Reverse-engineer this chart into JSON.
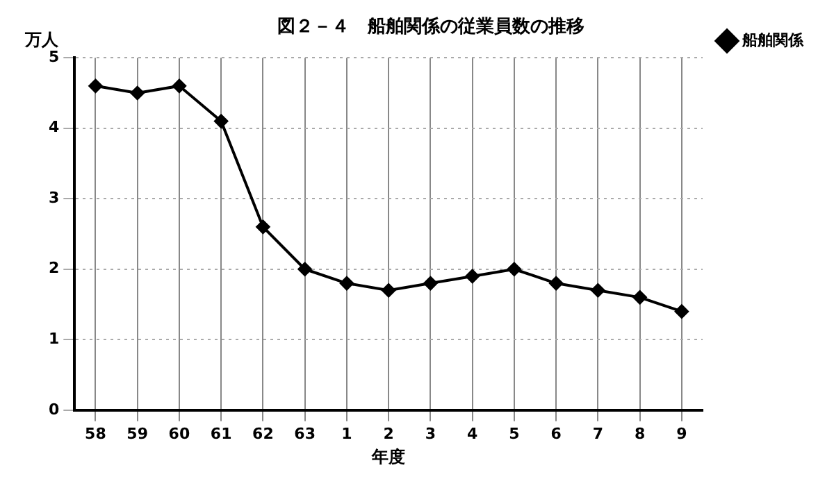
{
  "chart_data": {
    "type": "line",
    "title": "図２－４　船舶関係の従業員数の推移",
    "xlabel": "年度",
    "ylabel": "万人",
    "categories": [
      "58",
      "59",
      "60",
      "61",
      "62",
      "63",
      "1",
      "2",
      "3",
      "4",
      "5",
      "6",
      "7",
      "8",
      "9"
    ],
    "series": [
      {
        "name": "船舶関係",
        "color": "#000000",
        "values": [
          4.6,
          4.5,
          4.6,
          4.1,
          2.6,
          2.0,
          1.8,
          1.7,
          1.8,
          1.9,
          2.0,
          1.8,
          1.7,
          1.6,
          1.4
        ]
      }
    ],
    "ylim": [
      0,
      5
    ],
    "yticks": [
      0,
      1,
      2,
      3,
      4,
      5
    ],
    "grid": true,
    "legend": "top right",
    "marker": "diamond",
    "line_style": "solid"
  }
}
